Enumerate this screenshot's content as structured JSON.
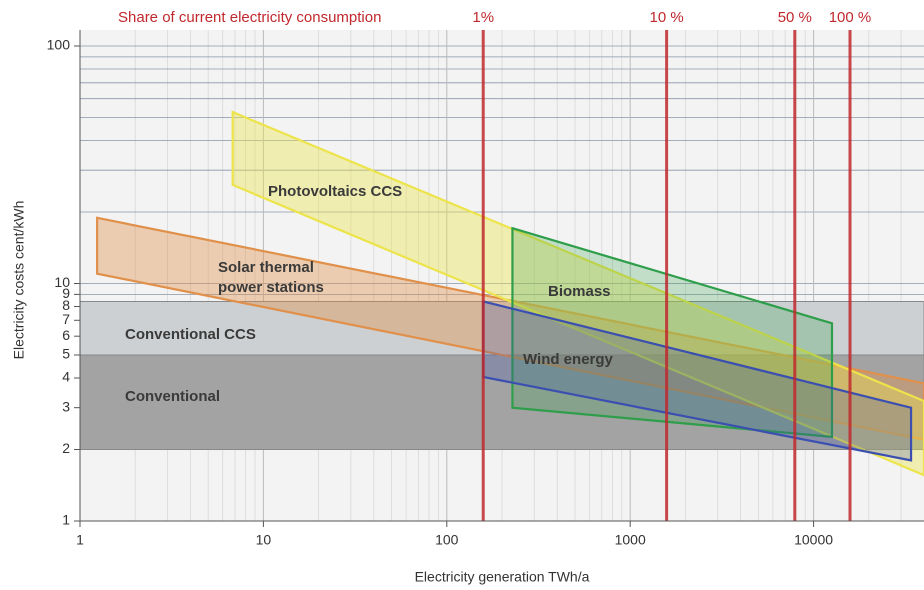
{
  "chart_data": {
    "type": "area-log",
    "top_axis_label": "Share of current electricity consumption",
    "x_label": "Electricity generation TWh/a",
    "y_label": "Electricity costs cent/kWh",
    "xlim": [
      1,
      40000
    ],
    "ylim": [
      1,
      100
    ],
    "log_x": true,
    "log_y": true,
    "grid": true,
    "xticks": [
      1,
      10,
      100,
      1000,
      10000
    ],
    "yticks": [
      1,
      2,
      3,
      4,
      5,
      6,
      7,
      8,
      9,
      10,
      100
    ],
    "x2lim": [
      0.00633,
      253.2
    ],
    "x2ticks": [
      {
        "value": 1,
        "label": "1%"
      },
      {
        "value": 10,
        "label": "10 %"
      },
      {
        "value": 50,
        "label": "50 %"
      },
      {
        "value": 100,
        "label": "100 %"
      }
    ],
    "x2_color": "#c0282d",
    "series": [
      {
        "label": [
          "Conventional"
        ],
        "color": "#a3a3a3",
        "opacity": 1,
        "points": [
          [
            1,
            5
          ],
          [
            40000,
            5
          ],
          [
            40000,
            2
          ],
          [
            1,
            2
          ]
        ]
      },
      {
        "label": [
          "Conventional CCS"
        ],
        "color": "#cdd0d2",
        "opacity": 1,
        "points": [
          [
            1,
            8.4
          ],
          [
            40000,
            8.4
          ],
          [
            40000,
            5
          ],
          [
            1,
            5
          ]
        ]
      },
      {
        "label": [
          "Solar thermal",
          "power stations"
        ],
        "color": "#e0904a",
        "opacity": 0.4,
        "points": [
          [
            1.24,
            18.9
          ],
          [
            40000,
            3.8
          ],
          [
            40000,
            2.2
          ],
          [
            1.24,
            11
          ]
        ]
      },
      {
        "label": [
          "Photovoltaics CCS"
        ],
        "color": "#ece44a",
        "opacity": 0.4,
        "points": [
          [
            6.8,
            52.7
          ],
          [
            40000,
            3.2
          ],
          [
            40000,
            1.56
          ],
          [
            6.8,
            26
          ]
        ]
      },
      {
        "label": [
          "Biomass"
        ],
        "color": "#2e9e4a",
        "opacity": 0.25,
        "points": [
          [
            228,
            17.1
          ],
          [
            12600,
            6.8
          ],
          [
            12600,
            2.26
          ],
          [
            228,
            3.0
          ]
        ]
      },
      {
        "label": [
          "Wind energy"
        ],
        "color": "#3a4fb0",
        "opacity": 0.25,
        "points": [
          [
            158,
            8.4
          ],
          [
            34000,
            3.0
          ],
          [
            34000,
            1.8
          ],
          [
            158,
            4.04
          ]
        ]
      }
    ]
  }
}
